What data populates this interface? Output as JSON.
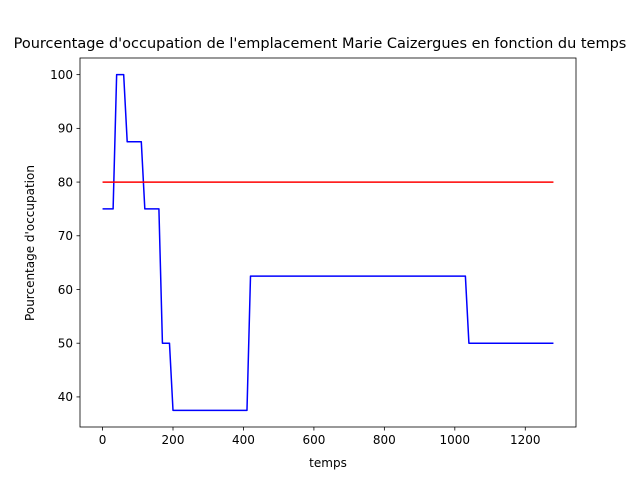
{
  "chart_data": {
    "type": "line",
    "title": "Pourcentage d'occupation de l'emplacement Marie Caizergues en fonction du temps",
    "xlabel": "temps",
    "ylabel": "Pourcentage d'occupation",
    "xlim": [
      -64,
      1344
    ],
    "ylim": [
      34.4,
      103.1
    ],
    "xticks": [
      0,
      200,
      400,
      600,
      800,
      1000,
      1200
    ],
    "yticks": [
      40,
      50,
      60,
      70,
      80,
      90,
      100
    ],
    "grid": false,
    "series": [
      {
        "color": "#0000ff",
        "x": [
          0,
          10,
          20,
          30,
          40,
          50,
          60,
          70,
          80,
          90,
          100,
          110,
          120,
          130,
          140,
          150,
          160,
          170,
          180,
          190,
          200,
          210,
          400,
          410,
          420,
          430,
          1020,
          1030,
          1040,
          1280
        ],
        "y": [
          75,
          75,
          75,
          75,
          100,
          100,
          100,
          87.5,
          87.5,
          87.5,
          87.5,
          87.5,
          75,
          75,
          75,
          75,
          75,
          50,
          50,
          50,
          37.5,
          37.5,
          37.5,
          37.5,
          62.5,
          62.5,
          62.5,
          62.5,
          50,
          50
        ]
      },
      {
        "color": "#ff0000",
        "x": [
          0,
          1280
        ],
        "y": [
          80,
          80
        ]
      }
    ]
  }
}
